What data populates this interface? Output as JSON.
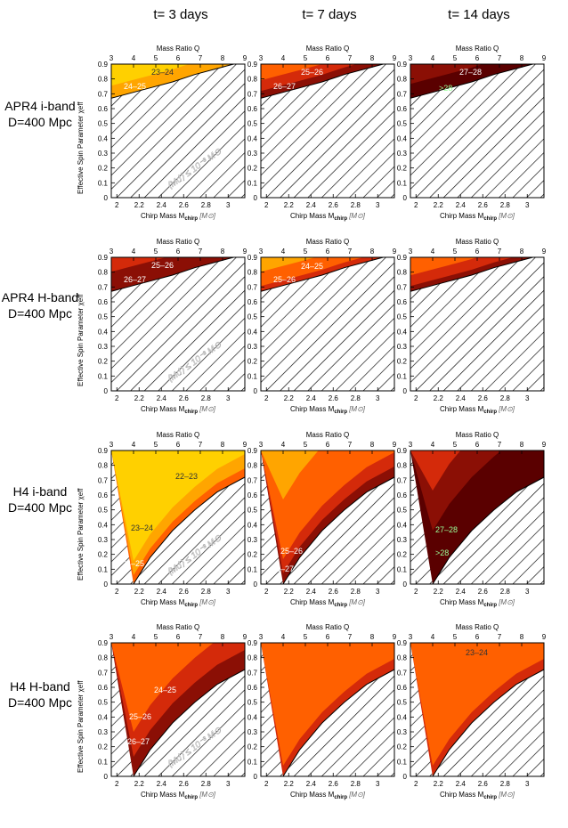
{
  "column_titles": [
    "t= 3 days",
    "t= 7 days",
    "t= 14 days"
  ],
  "row_labels": [
    {
      "line1": "APR4 i-band",
      "line2": "D=400 Mpc"
    },
    {
      "line1": "APR4 H-band",
      "line2": "D=400 Mpc"
    },
    {
      "line1": "H4 i-band",
      "line2": "D=400 Mpc"
    },
    {
      "line1": "H4 H-band",
      "line2": "D=400 Mpc"
    }
  ],
  "axis": {
    "top_title": "Mass Ratio Q",
    "top_ticks": [
      "3",
      "4",
      "5",
      "6",
      "7",
      "8",
      "9"
    ],
    "bottom_title": "Chirp Mass M",
    "bottom_title_sub": "chirp",
    "bottom_unit": "[M⊙]",
    "bottom_ticks": [
      "2",
      "2.2",
      "2.4",
      "2.6",
      "2.8",
      "3"
    ],
    "y_title": "Effective Spin Parameter χeff",
    "y_ticks": [
      "0",
      "0.1",
      "0.2",
      "0.3",
      "0.4",
      "0.5",
      "0.6",
      "0.7",
      "0.8",
      "0.9"
    ],
    "excluded_label": "⟨Md⟩ ≤ 10⁻³ M⊙"
  },
  "colors": {
    "yellow": "#FFD000",
    "light_orange": "#FFA500",
    "orange": "#FF6000",
    "red": "#D42A0A",
    "dark_red": "#8B0F05",
    "darkest": "#5A0000"
  },
  "chart_data": {
    "type": "contour",
    "x": {
      "label": "Chirp Mass Mchirp [M⊙]",
      "range": [
        1.95,
        3.15
      ]
    },
    "x_top": {
      "label": "Mass Ratio Q",
      "range": [
        3,
        9
      ]
    },
    "y": {
      "label": "Effective Spin Parameter χeff",
      "range": [
        0,
        0.9
      ]
    },
    "panels": [
      {
        "row": 0,
        "col": 0,
        "model": "APR4",
        "band": "i",
        "t_days": 3,
        "boundary": [
          [
            1.95,
            0.67
          ],
          [
            2.1,
            0.7
          ],
          [
            2.3,
            0.74
          ],
          [
            2.5,
            0.78
          ],
          [
            2.7,
            0.83
          ],
          [
            2.9,
            0.87
          ],
          [
            3.05,
            0.9
          ]
        ],
        "contour_labels": [
          "23–24",
          "24–25"
        ],
        "show_excluded_label": true
      },
      {
        "row": 0,
        "col": 1,
        "model": "APR4",
        "band": "i",
        "t_days": 7,
        "boundary": [
          [
            1.95,
            0.67
          ],
          [
            2.1,
            0.7
          ],
          [
            2.3,
            0.74
          ],
          [
            2.5,
            0.78
          ],
          [
            2.7,
            0.83
          ],
          [
            2.9,
            0.87
          ],
          [
            3.05,
            0.9
          ]
        ],
        "contour_labels": [
          "25–26",
          "26–27"
        ],
        "show_excluded_label": false
      },
      {
        "row": 0,
        "col": 2,
        "model": "APR4",
        "band": "i",
        "t_days": 14,
        "boundary": [
          [
            1.95,
            0.67
          ],
          [
            2.1,
            0.7
          ],
          [
            2.3,
            0.74
          ],
          [
            2.5,
            0.78
          ],
          [
            2.7,
            0.83
          ],
          [
            2.9,
            0.87
          ],
          [
            3.05,
            0.9
          ]
        ],
        "contour_labels": [
          "27–28",
          ">28"
        ],
        "show_excluded_label": false
      },
      {
        "row": 1,
        "col": 0,
        "model": "APR4",
        "band": "H",
        "t_days": 3,
        "boundary": [
          [
            1.95,
            0.67
          ],
          [
            2.1,
            0.7
          ],
          [
            2.3,
            0.74
          ],
          [
            2.5,
            0.78
          ],
          [
            2.7,
            0.83
          ],
          [
            2.9,
            0.87
          ],
          [
            3.05,
            0.9
          ]
        ],
        "contour_labels": [
          "25–26",
          "26–27"
        ],
        "show_excluded_label": true
      },
      {
        "row": 1,
        "col": 1,
        "model": "APR4",
        "band": "H",
        "t_days": 7,
        "boundary": [
          [
            1.95,
            0.67
          ],
          [
            2.1,
            0.7
          ],
          [
            2.3,
            0.74
          ],
          [
            2.5,
            0.78
          ],
          [
            2.7,
            0.83
          ],
          [
            2.9,
            0.87
          ],
          [
            3.05,
            0.9
          ]
        ],
        "contour_labels": [
          "24–25",
          "25–26"
        ],
        "show_excluded_label": false
      },
      {
        "row": 1,
        "col": 2,
        "model": "APR4",
        "band": "H",
        "t_days": 14,
        "boundary": [
          [
            1.95,
            0.67
          ],
          [
            2.1,
            0.7
          ],
          [
            2.3,
            0.74
          ],
          [
            2.5,
            0.78
          ],
          [
            2.7,
            0.83
          ],
          [
            2.9,
            0.87
          ],
          [
            3.05,
            0.9
          ]
        ],
        "contour_labels": [],
        "show_excluded_label": false
      },
      {
        "row": 2,
        "col": 0,
        "model": "H4",
        "band": "i",
        "t_days": 3,
        "boundary": [
          [
            2.15,
            0.0
          ],
          [
            2.3,
            0.18
          ],
          [
            2.5,
            0.36
          ],
          [
            2.7,
            0.5
          ],
          [
            2.9,
            0.62
          ],
          [
            3.15,
            0.72
          ]
        ],
        "contour_labels": [
          "22–23",
          "23–24",
          "24–25"
        ],
        "show_excluded_label": true
      },
      {
        "row": 2,
        "col": 1,
        "model": "H4",
        "band": "i",
        "t_days": 7,
        "boundary": [
          [
            2.15,
            0.0
          ],
          [
            2.3,
            0.18
          ],
          [
            2.5,
            0.36
          ],
          [
            2.7,
            0.5
          ],
          [
            2.9,
            0.62
          ],
          [
            3.15,
            0.72
          ]
        ],
        "contour_labels": [
          "25–26",
          "26–27"
        ],
        "show_excluded_label": false
      },
      {
        "row": 2,
        "col": 2,
        "model": "H4",
        "band": "i",
        "t_days": 14,
        "boundary": [
          [
            2.15,
            0.0
          ],
          [
            2.3,
            0.18
          ],
          [
            2.5,
            0.36
          ],
          [
            2.7,
            0.5
          ],
          [
            2.9,
            0.62
          ],
          [
            3.15,
            0.72
          ]
        ],
        "contour_labels": [
          "27–28",
          ">28"
        ],
        "show_excluded_label": false
      },
      {
        "row": 3,
        "col": 0,
        "model": "H4",
        "band": "H",
        "t_days": 3,
        "boundary": [
          [
            2.15,
            0.0
          ],
          [
            2.3,
            0.18
          ],
          [
            2.5,
            0.36
          ],
          [
            2.7,
            0.5
          ],
          [
            2.9,
            0.62
          ],
          [
            3.15,
            0.72
          ]
        ],
        "contour_labels": [
          "24–25",
          "25–26",
          "26–27"
        ],
        "show_excluded_label": true
      },
      {
        "row": 3,
        "col": 1,
        "model": "H4",
        "band": "H",
        "t_days": 7,
        "boundary": [
          [
            2.15,
            0.0
          ],
          [
            2.3,
            0.18
          ],
          [
            2.5,
            0.36
          ],
          [
            2.7,
            0.5
          ],
          [
            2.9,
            0.62
          ],
          [
            3.15,
            0.72
          ]
        ],
        "contour_labels": [],
        "show_excluded_label": false
      },
      {
        "row": 3,
        "col": 2,
        "model": "H4",
        "band": "H",
        "t_days": 14,
        "boundary": [
          [
            2.15,
            0.0
          ],
          [
            2.3,
            0.18
          ],
          [
            2.5,
            0.36
          ],
          [
            2.7,
            0.5
          ],
          [
            2.9,
            0.62
          ],
          [
            3.15,
            0.72
          ]
        ],
        "contour_labels": [
          "23–24"
        ],
        "show_excluded_label": false
      }
    ]
  }
}
